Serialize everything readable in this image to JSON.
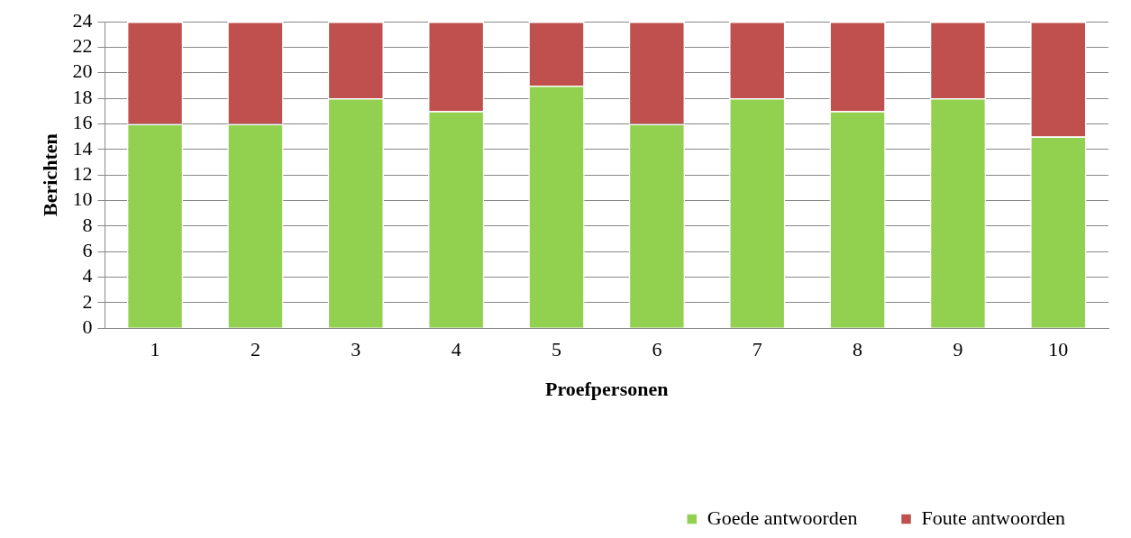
{
  "chart_data": {
    "type": "bar",
    "stacked": true,
    "xlabel": "Proefpersonen",
    "ylabel": "Berichten",
    "categories": [
      "1",
      "2",
      "3",
      "4",
      "5",
      "6",
      "7",
      "8",
      "9",
      "10"
    ],
    "series": [
      {
        "name": "Goede antwoorden",
        "color": "#92d050",
        "values": [
          16,
          16,
          18,
          17,
          19,
          16,
          18,
          17,
          18,
          15
        ]
      },
      {
        "name": "Foute antwoorden",
        "color": "#c0504d",
        "values": [
          8,
          8,
          6,
          7,
          5,
          8,
          6,
          7,
          6,
          9
        ]
      }
    ],
    "ylim": [
      0,
      24
    ],
    "yticks": [
      0,
      2,
      4,
      6,
      8,
      10,
      12,
      14,
      16,
      18,
      20,
      22,
      24
    ],
    "grid": "y",
    "legend": "bottom right"
  }
}
